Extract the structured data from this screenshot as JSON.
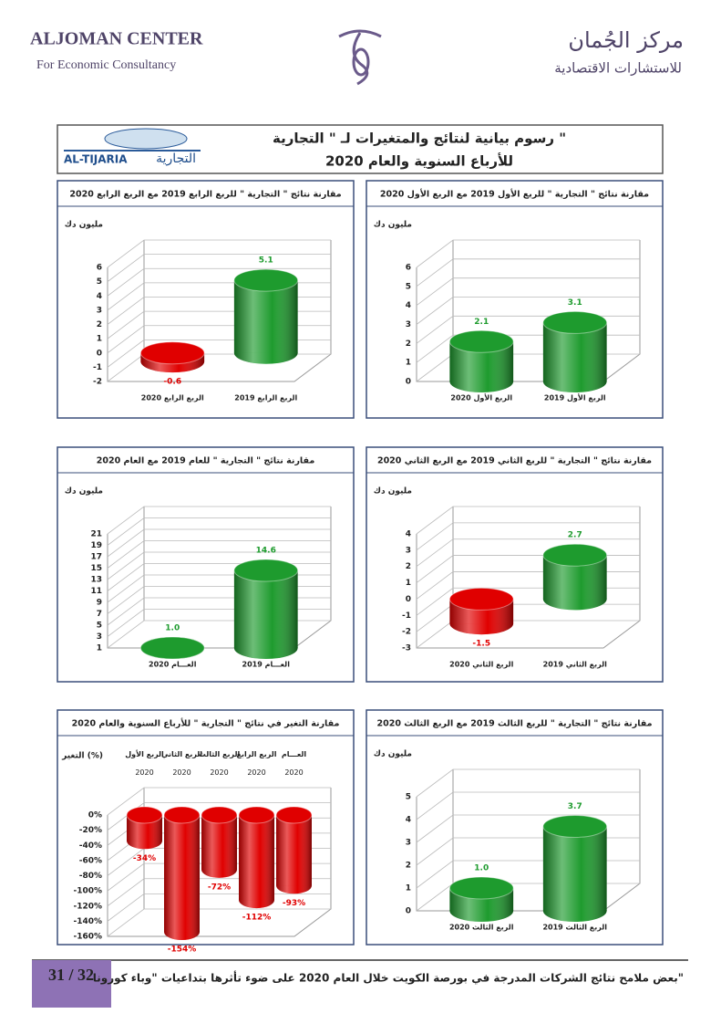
{
  "header": {
    "left_title": "ALJOMAN CENTER",
    "left_subtitle": "For Economic Consultancy",
    "right_title": "مركز الجُمان",
    "right_subtitle": "للاستشارات الاقتصادية"
  },
  "banner": {
    "logo_latin": "AL-TIJARIA",
    "logo_arabic": "التجارية",
    "title": "رسوم بيانية لنتائج والمتغيرات لـ \" التجارية \"",
    "subtitle": "للأرباع السنوية والعام 2020"
  },
  "chart_data": [
    {
      "type": "bar",
      "title": "مقارنة نتائج \" التجارية \" للربع الأول 2019 مع الربع الأول 2020",
      "y_label": "مليون دك",
      "categories": [
        "الربع الأول 2020",
        "الربع الأول 2019"
      ],
      "values": [
        2.1,
        3.1
      ],
      "colors": [
        "#1e9b2e",
        "#1e9b2e"
      ],
      "ylim": [
        0,
        6
      ],
      "yticks": [
        0,
        1,
        2,
        3,
        4,
        5,
        6
      ]
    },
    {
      "type": "bar",
      "title": "مقارنة نتائج \" التجارية \" للربع الرابع 2019 مع الربع الرابع 2020",
      "y_label": "مليون دك",
      "categories": [
        "الربع الرابع 2020",
        "الربع الرابع 2019"
      ],
      "values": [
        -0.6,
        5.1
      ],
      "colors": [
        "#e00000",
        "#1e9b2e"
      ],
      "ylim": [
        -2,
        6
      ],
      "yticks": [
        -2,
        -1,
        0,
        1,
        2,
        3,
        4,
        5,
        6
      ]
    },
    {
      "type": "bar",
      "title": "مقارنة نتائج \" التجارية \" للربع الثاني 2019 مع الربع الثاني 2020",
      "y_label": "مليون دك",
      "categories": [
        "الربع الثاني 2020",
        "الربع الثاني 2019"
      ],
      "values": [
        -1.5,
        2.7
      ],
      "colors": [
        "#e00000",
        "#1e9b2e"
      ],
      "ylim": [
        -3,
        4
      ],
      "yticks": [
        -3,
        -2,
        -1,
        0,
        1,
        2,
        3,
        4
      ]
    },
    {
      "type": "bar",
      "title": "مقارنة نتائج \" التجارية \" للعام 2019 مع العام 2020",
      "y_label": "مليون دك",
      "categories": [
        "العـــام 2020",
        "العـــام 2019"
      ],
      "values": [
        1.0,
        14.6
      ],
      "value_labels": [
        "1.0",
        "14.6"
      ],
      "colors": [
        "#1e9b2e",
        "#1e9b2e"
      ],
      "ylim": [
        1,
        21
      ],
      "yticks": [
        1,
        3,
        5,
        7,
        9,
        11,
        13,
        15,
        17,
        19,
        21
      ]
    },
    {
      "type": "bar",
      "title": "مقارنة نتائج \" التجارية \" للربع الثالث 2019 مع الربع الثالث 2020",
      "y_label": "مليون دك",
      "categories": [
        "الربع الثالث 2020",
        "الربع الثالث 2019"
      ],
      "values": [
        1.0,
        3.7
      ],
      "value_labels": [
        "1.0",
        "3.7"
      ],
      "colors": [
        "#1e9b2e",
        "#1e9b2e"
      ],
      "ylim": [
        0,
        5
      ],
      "yticks": [
        0,
        1,
        2,
        3,
        4,
        5
      ]
    },
    {
      "type": "bar",
      "title": "مقارنة التغير في نتائج \" التجارية \" للأرباع السنوية والعام 2020",
      "y_label": "التغير (%)",
      "categories": [
        "الربع الأول 2020",
        "الربع الثاني 2020",
        "الربع الثالث 2020",
        "الربع الرابع 2020",
        "العـــام 2020"
      ],
      "values": [
        -34,
        -154,
        -72,
        -112,
        -93
      ],
      "value_labels": [
        "-34%",
        "-154%",
        "-72%",
        "-112%",
        "-93%"
      ],
      "colors": [
        "#e00000",
        "#e00000",
        "#e00000",
        "#e00000",
        "#e00000"
      ],
      "ylim": [
        -160,
        0
      ],
      "yticks": [
        {
          "value": 0,
          "label": "0%"
        },
        {
          "value": -20,
          "label": "-20%"
        },
        {
          "value": -40,
          "label": "-40%"
        },
        {
          "value": -60,
          "label": "-60%"
        },
        {
          "value": -80,
          "label": "-80%"
        },
        {
          "value": -100,
          "label": "-100%"
        },
        {
          "value": -120,
          "label": "-120%"
        },
        {
          "value": -140,
          "label": "-140%"
        },
        {
          "value": -160,
          "label": "-160%"
        }
      ]
    }
  ],
  "footer": {
    "text": "بعض ملامح نتائج الشركات المدرجة في بورصة الكويت خلال العام 2020 على ضوء تأثرها بتداعيات \"وباء كورونا\"",
    "page": "31 / 32"
  }
}
